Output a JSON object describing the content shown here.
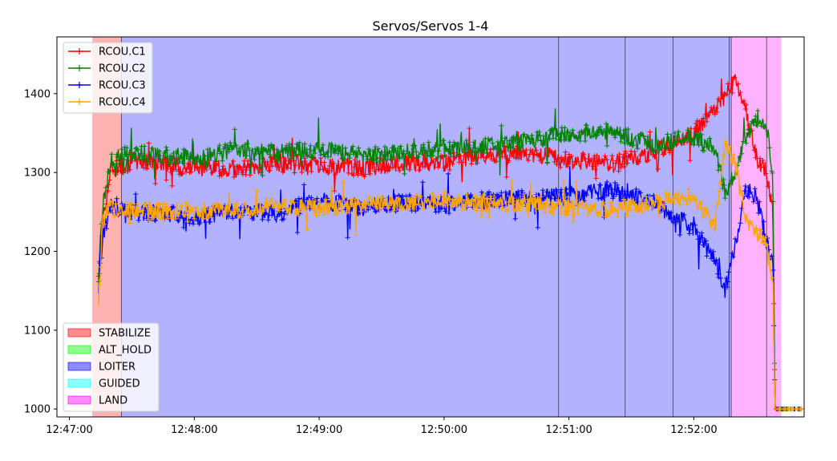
{
  "chart_data": {
    "type": "line",
    "title": "Servos/Servos 1-4",
    "xlabel": "",
    "ylabel": "",
    "x_tick_labels": [
      "12:47:00",
      "12:48:00",
      "12:49:00",
      "12:50:00",
      "12:51:00",
      "12:52:00"
    ],
    "x_ticks_seconds": [
      0,
      60,
      120,
      180,
      240,
      300
    ],
    "xlim_seconds": [
      -6,
      353
    ],
    "y_ticks": [
      1000,
      1100,
      1200,
      1300,
      1400
    ],
    "ylim": [
      990,
      1472
    ],
    "grid": false,
    "series_legend_location": "upper left",
    "modes_legend_location": "lower left",
    "series": [
      {
        "name": "RCOU.C1",
        "color": "#ff0000",
        "points": [
          [
            14,
            1160
          ],
          [
            16,
            1240
          ],
          [
            20,
            1305
          ],
          [
            30,
            1315
          ],
          [
            45,
            1312
          ],
          [
            60,
            1305
          ],
          [
            80,
            1305
          ],
          [
            100,
            1310
          ],
          [
            120,
            1310
          ],
          [
            140,
            1305
          ],
          [
            160,
            1312
          ],
          [
            180,
            1312
          ],
          [
            200,
            1322
          ],
          [
            220,
            1325
          ],
          [
            240,
            1315
          ],
          [
            260,
            1312
          ],
          [
            280,
            1325
          ],
          [
            300,
            1350
          ],
          [
            315,
            1395
          ],
          [
            320,
            1420
          ],
          [
            325,
            1380
          ],
          [
            330,
            1320
          ],
          [
            335,
            1300
          ],
          [
            338,
            1250
          ],
          [
            339,
            1000
          ],
          [
            352,
            1000
          ]
        ]
      },
      {
        "name": "RCOU.C2",
        "color": "#008000",
        "points": [
          [
            14,
            1170
          ],
          [
            16,
            1260
          ],
          [
            20,
            1315
          ],
          [
            30,
            1325
          ],
          [
            45,
            1322
          ],
          [
            60,
            1318
          ],
          [
            80,
            1328
          ],
          [
            100,
            1325
          ],
          [
            120,
            1330
          ],
          [
            140,
            1322
          ],
          [
            160,
            1325
          ],
          [
            180,
            1330
          ],
          [
            200,
            1333
          ],
          [
            220,
            1340
          ],
          [
            240,
            1348
          ],
          [
            260,
            1352
          ],
          [
            280,
            1335
          ],
          [
            300,
            1345
          ],
          [
            310,
            1330
          ],
          [
            315,
            1275
          ],
          [
            320,
            1300
          ],
          [
            325,
            1345
          ],
          [
            330,
            1370
          ],
          [
            335,
            1360
          ],
          [
            338,
            1290
          ],
          [
            339,
            1000
          ],
          [
            352,
            1000
          ]
        ]
      },
      {
        "name": "RCOU.C3",
        "color": "#0000ff",
        "points": [
          [
            14,
            1150
          ],
          [
            16,
            1220
          ],
          [
            20,
            1260
          ],
          [
            30,
            1250
          ],
          [
            45,
            1248
          ],
          [
            60,
            1245
          ],
          [
            80,
            1250
          ],
          [
            100,
            1248
          ],
          [
            120,
            1265
          ],
          [
            140,
            1255
          ],
          [
            160,
            1262
          ],
          [
            180,
            1258
          ],
          [
            200,
            1265
          ],
          [
            220,
            1268
          ],
          [
            240,
            1270
          ],
          [
            260,
            1278
          ],
          [
            280,
            1262
          ],
          [
            300,
            1230
          ],
          [
            310,
            1190
          ],
          [
            315,
            1150
          ],
          [
            320,
            1210
          ],
          [
            325,
            1280
          ],
          [
            330,
            1270
          ],
          [
            335,
            1210
          ],
          [
            338,
            1185
          ],
          [
            339,
            1000
          ],
          [
            352,
            1000
          ]
        ]
      },
      {
        "name": "RCOU.C4",
        "color": "#ffa500",
        "points": [
          [
            14,
            1130
          ],
          [
            16,
            1240
          ],
          [
            20,
            1255
          ],
          [
            30,
            1252
          ],
          [
            45,
            1250
          ],
          [
            60,
            1252
          ],
          [
            80,
            1252
          ],
          [
            100,
            1258
          ],
          [
            120,
            1255
          ],
          [
            140,
            1260
          ],
          [
            160,
            1262
          ],
          [
            180,
            1265
          ],
          [
            200,
            1262
          ],
          [
            220,
            1262
          ],
          [
            240,
            1255
          ],
          [
            260,
            1252
          ],
          [
            280,
            1262
          ],
          [
            300,
            1268
          ],
          [
            310,
            1230
          ],
          [
            315,
            1340
          ],
          [
            320,
            1310
          ],
          [
            325,
            1240
          ],
          [
            330,
            1225
          ],
          [
            335,
            1205
          ],
          [
            338,
            1165
          ],
          [
            339,
            1000
          ],
          [
            352,
            1000
          ]
        ]
      }
    ],
    "modes": [
      {
        "name": "STABILIZE",
        "color": "#ff0000"
      },
      {
        "name": "ALT_HOLD",
        "color": "#00ff00"
      },
      {
        "name": "LOITER",
        "color": "#0000ff"
      },
      {
        "name": "GUIDED",
        "color": "#00ffff"
      },
      {
        "name": "LAND",
        "color": "#ff00ff"
      }
    ],
    "mode_spans": [
      {
        "mode": "STABILIZE",
        "x_seconds": [
          11,
          25
        ]
      },
      {
        "mode": "LOITER",
        "x_seconds": [
          25,
          318
        ]
      },
      {
        "mode": "LAND",
        "x_seconds": [
          318,
          342
        ]
      }
    ],
    "vertical_markers_seconds": [
      235,
      267,
      290,
      317,
      335
    ]
  }
}
